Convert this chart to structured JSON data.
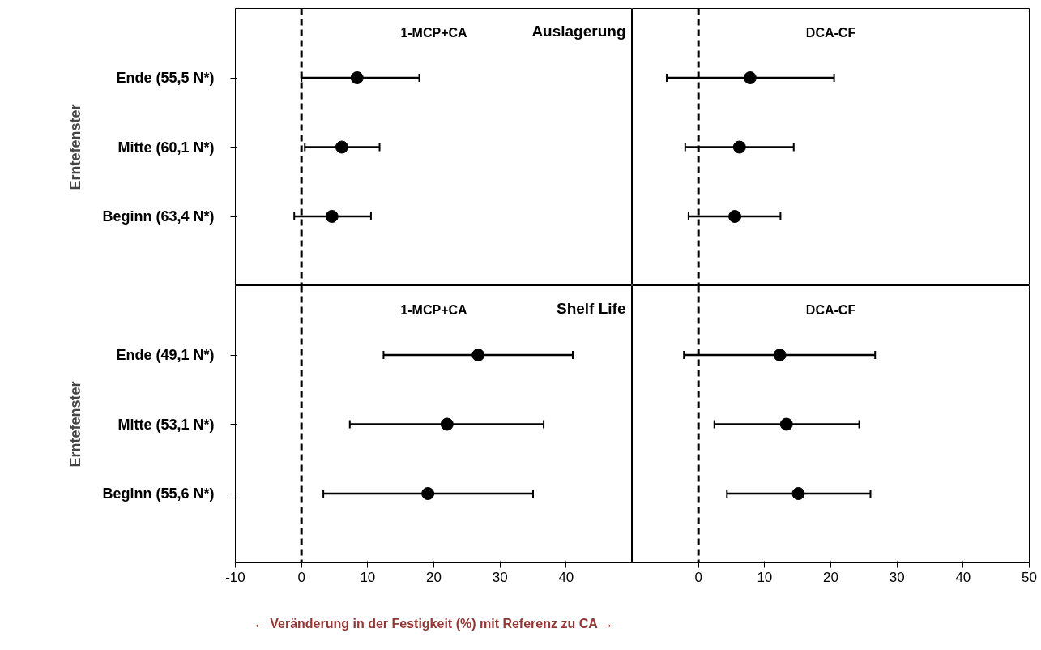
{
  "chart_data": [
    {
      "type": "scatter",
      "orientation": "horizontal",
      "title": "1-MCP+CA",
      "ylabel": "Erntefenster",
      "annotations": [
        "Auslagerung"
      ],
      "categories": [
        "Ende (55,5 N*)",
        "Mitte (60,1 N*)",
        "Beginn (63,4 N*)"
      ],
      "xlim": [
        -10,
        50
      ],
      "xticks": [
        -10,
        0,
        10,
        20,
        30,
        40
      ],
      "tick_labels": "y",
      "marker": "circle",
      "series": [
        {
          "color": "#000000",
          "values": [
            8.4,
            6.1,
            4.6
          ],
          "errors": [
            [
              0.0,
              17.8
            ],
            [
              0.5,
              11.8
            ],
            [
              -1.1,
              10.5
            ]
          ]
        }
      ],
      "ref_lines": [
        {
          "axis": "x",
          "value": 0,
          "line_style": "dashed",
          "color": "#000000"
        }
      ]
    },
    {
      "type": "scatter",
      "orientation": "horizontal",
      "title": "DCA-CF",
      "xlim": [
        -10,
        50
      ],
      "xticks": [
        0,
        10,
        20,
        30,
        40,
        50
      ],
      "tick_labels": false,
      "marker": "circle",
      "series": [
        {
          "color": "#000000",
          "values": [
            7.8,
            6.2,
            5.5
          ],
          "errors": [
            [
              -4.8,
              20.5
            ],
            [
              -2.0,
              14.4
            ],
            [
              -1.5,
              12.4
            ]
          ]
        }
      ],
      "ref_lines": [
        {
          "axis": "x",
          "value": 0,
          "line_style": "dashed",
          "color": "#000000"
        }
      ]
    },
    {
      "type": "scatter",
      "orientation": "horizontal",
      "title": "1-MCP+CA",
      "ylabel": "Erntefenster",
      "xlabel": "← Veränderung in der Festigkeit (%) mit Referenz zu CA →",
      "annotations": [
        "Shelf Life"
      ],
      "categories": [
        "Ende (49,1 N*)",
        "Mitte (53,1 N*)",
        "Beginn (55,6 N*)"
      ],
      "xlim": [
        -10,
        50
      ],
      "xticks": [
        -10,
        0,
        10,
        20,
        30,
        40
      ],
      "marker": "circle",
      "series": [
        {
          "color": "#000000",
          "values": [
            26.7,
            22.0,
            19.1
          ],
          "errors": [
            [
              12.4,
              41.0
            ],
            [
              7.3,
              36.6
            ],
            [
              3.3,
              35.0
            ]
          ]
        }
      ],
      "ref_lines": [
        {
          "axis": "x",
          "value": 0,
          "line_style": "dashed",
          "color": "#000000"
        }
      ]
    },
    {
      "type": "scatter",
      "orientation": "horizontal",
      "title": "DCA-CF",
      "xlim": [
        -10,
        50
      ],
      "xticks": [
        0,
        10,
        20,
        30,
        40,
        50
      ],
      "tick_labels": "x",
      "marker": "circle",
      "series": [
        {
          "color": "#000000",
          "values": [
            12.3,
            13.3,
            15.1
          ],
          "errors": [
            [
              -2.2,
              26.7
            ],
            [
              2.4,
              24.3
            ],
            [
              4.3,
              26.0
            ]
          ]
        }
      ],
      "ref_lines": [
        {
          "axis": "x",
          "value": 0,
          "line_style": "dashed",
          "color": "#000000"
        }
      ]
    }
  ]
}
